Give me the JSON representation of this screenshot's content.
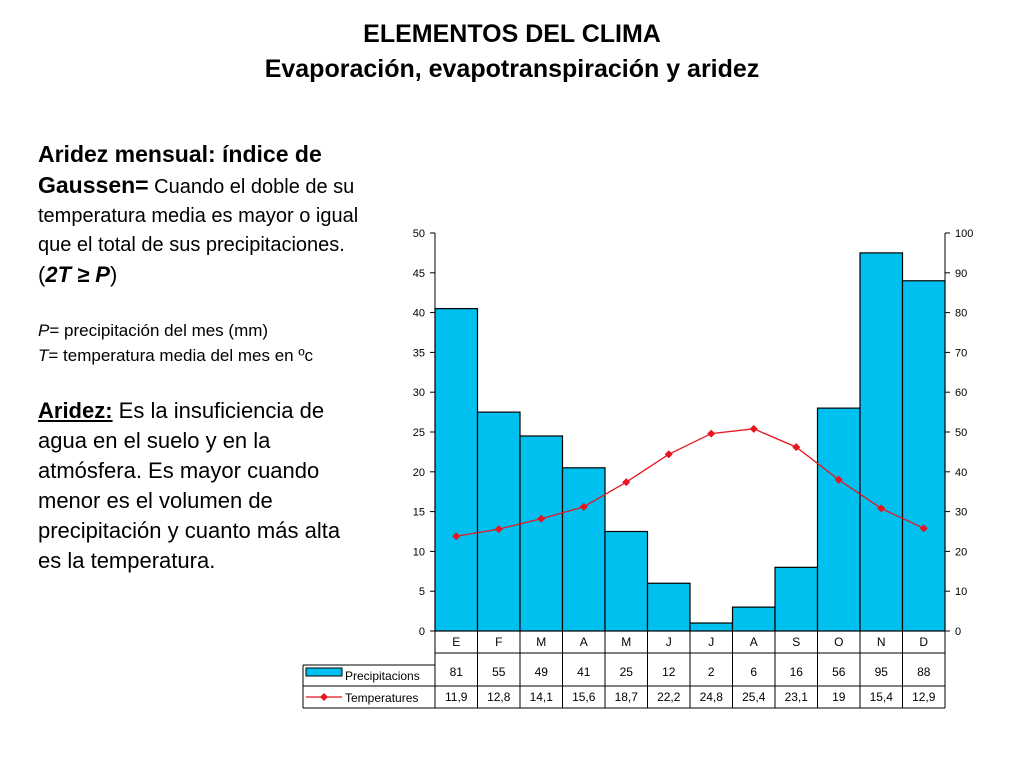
{
  "header": {
    "title": "ELEMENTOS DEL CLIMA",
    "subtitle": "Evaporación, evapotranspiración y aridez"
  },
  "gaussen": {
    "heading_1": "Aridez mensual: índice de",
    "heading_2": "Gaussen",
    "eq": "=",
    "text_1": " Cuando el doble de su",
    "text_2": "temperatura media es mayor o igual",
    "text_3": "que el total de sus precipitaciones.",
    "paren_open": "(",
    "formula": "2T ≥ P",
    "paren_close": ")"
  },
  "definitions": {
    "p_symbol": "P",
    "p_text": "= precipitación del mes (mm)",
    "t_symbol": "T",
    "t_text": "= temperatura media del mes en ºc"
  },
  "aridez": {
    "term": "Aridez:",
    "line_1": " Es la insuficiencia de",
    "line_2": "agua en el suelo y en la",
    "line_3": "atmósfera. Es mayor cuando",
    "line_4": "menor es el volumen de",
    "line_5": "precipitación  y cuanto más alta",
    "line_6": "es la temperatura."
  },
  "chart_data": {
    "type": "bar",
    "categories": [
      "E",
      "F",
      "M",
      "A",
      "M",
      "J",
      "J",
      "A",
      "S",
      "O",
      "N",
      "D"
    ],
    "series": [
      {
        "name": "Precipitacions",
        "type": "bar",
        "axis": "right",
        "color": "#00c0f0",
        "values": [
          81,
          55,
          49,
          41,
          25,
          12,
          2,
          6,
          16,
          56,
          95,
          88
        ],
        "labels": [
          "81",
          "55",
          "49",
          "41",
          "25",
          "12",
          "2",
          "6",
          "16",
          "56",
          "95",
          "88"
        ]
      },
      {
        "name": "Temperatures",
        "type": "line",
        "axis": "left",
        "color": "#e8141e",
        "values": [
          11.9,
          12.8,
          14.1,
          15.6,
          18.7,
          22.2,
          24.8,
          25.4,
          23.1,
          19,
          15.4,
          12.9
        ],
        "labels": [
          "11,9",
          "12,8",
          "14,1",
          "15,6",
          "18,7",
          "22,2",
          "24,8",
          "25,4",
          "23,1",
          "19",
          "15,4",
          "12,9"
        ]
      }
    ],
    "y_left": {
      "range": [
        0,
        50
      ],
      "ticks": [
        "0",
        "5",
        "10",
        "15",
        "20",
        "25",
        "30",
        "35",
        "40",
        "45",
        "50"
      ]
    },
    "y_right": {
      "range": [
        0,
        100
      ],
      "ticks": [
        "0",
        "10",
        "20",
        "30",
        "40",
        "50",
        "60",
        "70",
        "80",
        "90",
        "100"
      ]
    },
    "grid": false,
    "legend": "data-table-below"
  }
}
